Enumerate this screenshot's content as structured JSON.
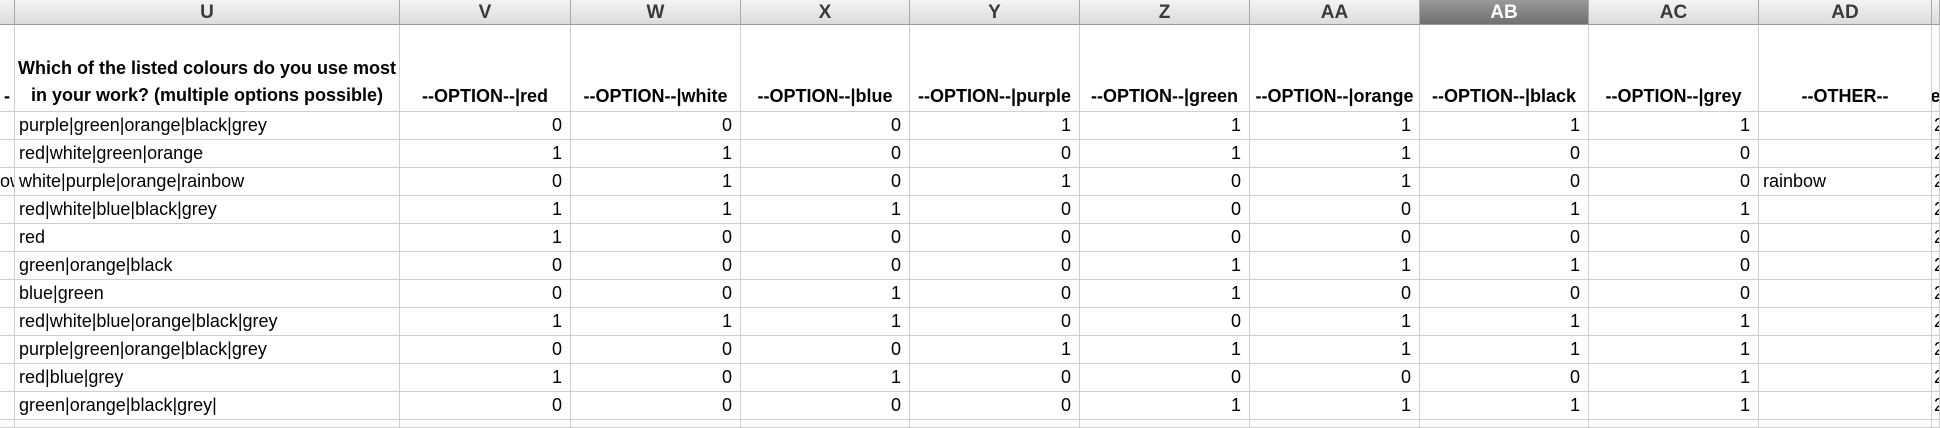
{
  "columns": [
    {
      "letter": "",
      "header": "-",
      "rows": [
        "",
        "",
        "ow",
        "",
        "",
        "",
        "",
        "",
        "",
        "",
        ""
      ]
    },
    {
      "letter": "U",
      "header": "Which of the listed colours do you use most in your work? (multiple options possible)",
      "rows": [
        "purple|green|orange|black|grey",
        "red|white|green|orange",
        "white|purple|orange|rainbow",
        "red|white|blue|black|grey",
        "red",
        "green|orange|black",
        "blue|green",
        "red|white|blue|orange|black|grey",
        "purple|green|orange|black|grey",
        "red|blue|grey",
        "green|orange|black|grey|"
      ]
    },
    {
      "letter": "V",
      "header": "--OPTION--|red",
      "rows": [
        "0",
        "1",
        "0",
        "1",
        "1",
        "0",
        "0",
        "1",
        "0",
        "1",
        "0"
      ]
    },
    {
      "letter": "W",
      "header": "--OPTION--|white",
      "rows": [
        "0",
        "1",
        "1",
        "1",
        "0",
        "0",
        "0",
        "1",
        "0",
        "0",
        "0"
      ]
    },
    {
      "letter": "X",
      "header": "--OPTION--|blue",
      "rows": [
        "0",
        "0",
        "0",
        "1",
        "0",
        "0",
        "1",
        "1",
        "0",
        "1",
        "0"
      ]
    },
    {
      "letter": "Y",
      "header": "--OPTION--|purple",
      "rows": [
        "1",
        "0",
        "1",
        "0",
        "0",
        "0",
        "0",
        "0",
        "1",
        "0",
        "0"
      ]
    },
    {
      "letter": "Z",
      "header": "--OPTION--|green",
      "rows": [
        "1",
        "1",
        "0",
        "0",
        "0",
        "1",
        "1",
        "0",
        "1",
        "0",
        "1"
      ]
    },
    {
      "letter": "AA",
      "header": "--OPTION--|orange",
      "rows": [
        "1",
        "1",
        "1",
        "0",
        "0",
        "1",
        "0",
        "1",
        "1",
        "0",
        "1"
      ]
    },
    {
      "letter": "AB",
      "header": "--OPTION--|black",
      "rows": [
        "1",
        "0",
        "0",
        "1",
        "0",
        "1",
        "0",
        "1",
        "1",
        "0",
        "1"
      ]
    },
    {
      "letter": "AC",
      "header": "--OPTION--|grey",
      "rows": [
        "1",
        "0",
        "0",
        "1",
        "0",
        "0",
        "0",
        "1",
        "1",
        "1",
        "1"
      ]
    },
    {
      "letter": "AD",
      "header": "--OTHER--",
      "rows": [
        "",
        "",
        "rainbow",
        "",
        "",
        "",
        "",
        "",
        "",
        "",
        ""
      ]
    },
    {
      "letter": "",
      "header": "e",
      "rows": [
        "2",
        "2",
        "2",
        "2",
        "2",
        "2",
        "2",
        "2",
        "2",
        "2",
        "2"
      ]
    }
  ],
  "selected_column": "AB"
}
